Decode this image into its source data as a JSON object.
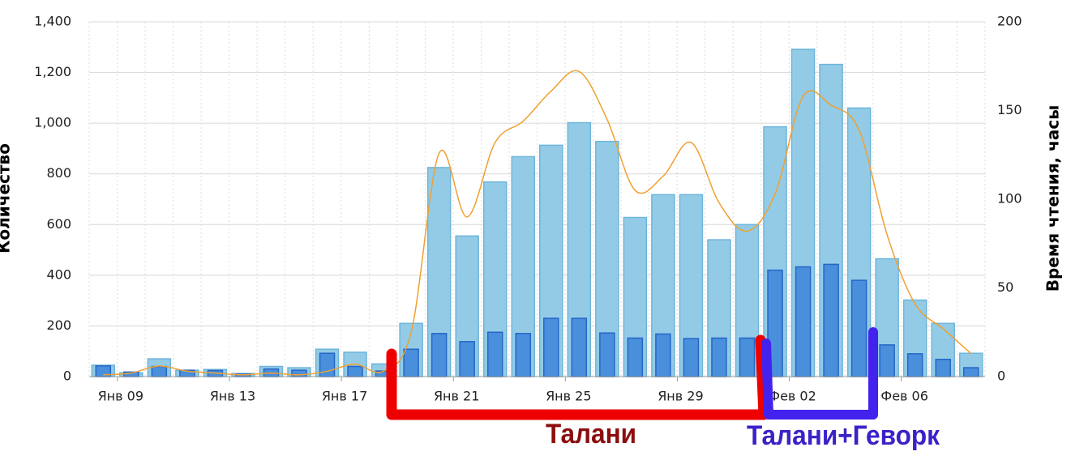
{
  "chart_data": {
    "type": "bar",
    "y_label": "Количество",
    "y2_label": "Время чтения, часы",
    "categories": [
      null,
      "Янв 09",
      null,
      null,
      null,
      "Янв 13",
      null,
      null,
      null,
      "Янв 17",
      null,
      null,
      null,
      "Янв 21",
      null,
      null,
      null,
      "Янв 25",
      null,
      null,
      null,
      "Янв 29",
      null,
      null,
      null,
      "Фев 02",
      null,
      null,
      null,
      "Фев 06",
      null,
      null
    ],
    "series": [
      {
        "type": "bar",
        "color": "#93cbe6",
        "values": [
          45,
          15,
          70,
          25,
          28,
          12,
          40,
          35,
          108,
          96,
          50,
          210,
          825,
          555,
          768,
          868,
          913,
          1002,
          928,
          628,
          718,
          718,
          540,
          600,
          986,
          1292,
          1232,
          1060,
          465,
          302,
          210,
          92
        ]
      },
      {
        "type": "bar",
        "color": "#4a8fdb",
        "values": [
          42,
          18,
          40,
          25,
          24,
          10,
          30,
          25,
          92,
          40,
          22,
          108,
          170,
          138,
          175,
          170,
          230,
          230,
          172,
          152,
          168,
          150,
          152,
          152,
          420,
          433,
          443,
          380,
          125,
          90,
          68,
          35
        ]
      },
      {
        "type": "line",
        "axis": "y2",
        "color": "#f0a030",
        "values": [
          1,
          2,
          6,
          3,
          2,
          1,
          2,
          1,
          3,
          7,
          3,
          25,
          126,
          90,
          132,
          144,
          161,
          172,
          145,
          105,
          113,
          132,
          98,
          82,
          103,
          158,
          153,
          139,
          80,
          41,
          27,
          13
        ]
      }
    ],
    "ylim": [
      0,
      1400
    ],
    "yticks": [
      0,
      200,
      400,
      600,
      800,
      {
        "value": 1000,
        "label": "1,000"
      },
      {
        "value": 1200,
        "label": "1,200"
      },
      {
        "value": 1400,
        "label": "1,400"
      }
    ],
    "y2lim": [
      0,
      200
    ],
    "y2ticks": [
      0,
      50,
      100,
      150,
      200
    ],
    "grid": true,
    "annotations": [
      "Талани",
      "Талани+Геворк"
    ]
  }
}
